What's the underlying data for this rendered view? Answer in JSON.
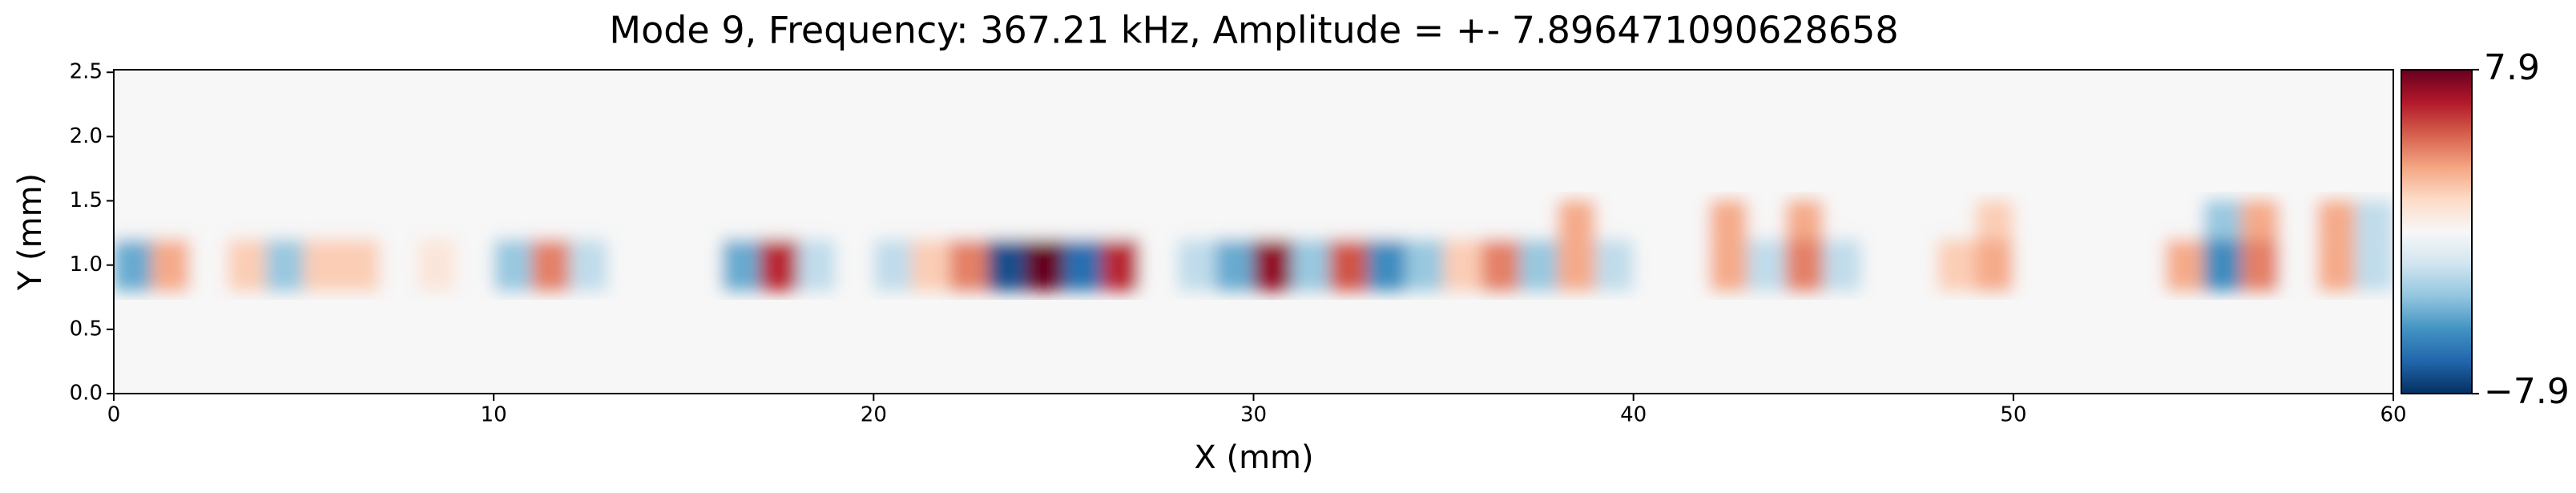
{
  "chart_data": {
    "type": "heatmap",
    "title": "Mode 9, Frequency: 367.21 kHz, Amplitude = +- 7.896471090628658",
    "xlabel": "X (mm)",
    "ylabel": "Y (mm)",
    "xlim": [
      0,
      60
    ],
    "ylim": [
      0,
      2.52
    ],
    "xticks": [
      0,
      10,
      20,
      30,
      40,
      50,
      60
    ],
    "yticks": [
      {
        "value": 0,
        "label": "0.0"
      },
      0.5,
      {
        "value": 1,
        "label": "1.0"
      },
      1.5,
      {
        "value": 2,
        "label": "2.0"
      },
      2.5
    ],
    "x_edges": [
      0,
      1,
      2,
      3,
      4,
      5,
      6,
      7,
      8,
      9,
      10,
      11,
      12,
      13,
      14,
      15,
      16,
      17,
      18,
      19,
      20,
      21,
      22,
      23,
      24,
      25,
      26,
      27,
      28,
      29,
      30,
      31,
      32,
      33,
      34,
      35,
      36,
      37,
      38,
      39,
      40,
      41,
      42,
      43,
      44,
      45,
      46,
      47,
      48,
      49,
      50,
      51,
      52,
      53,
      54,
      55,
      56,
      57,
      58,
      59,
      60
    ],
    "y_edges": [
      0.8,
      1.2,
      1.5
    ],
    "z": [
      [
        -4,
        3,
        0,
        2,
        -3,
        2,
        2,
        0,
        1,
        0,
        -3,
        4,
        -2,
        0,
        0,
        0,
        -4,
        6,
        -2,
        0,
        -2,
        2,
        4,
        -7,
        7.9,
        -6,
        6,
        0,
        -2,
        -4,
        7,
        -3,
        5,
        -5,
        -3,
        2,
        4,
        -3,
        3,
        -2,
        0,
        0,
        3,
        -2,
        4,
        -2,
        0,
        0,
        2,
        3,
        0,
        0,
        0,
        0,
        3,
        -5,
        4,
        0,
        3,
        -2
      ],
      [
        0,
        0,
        0,
        0,
        0,
        0,
        0,
        0,
        0,
        0,
        0,
        0,
        0,
        0,
        0,
        0,
        0,
        0,
        0,
        0,
        0,
        0,
        0,
        0,
        0,
        0,
        0,
        0,
        0,
        0,
        0,
        0,
        0,
        0,
        0,
        0,
        0,
        0,
        3,
        0,
        0,
        0,
        3,
        0,
        3,
        0,
        0,
        0,
        0,
        2,
        0,
        0,
        0,
        0,
        0,
        -3,
        3,
        0,
        3,
        -2
      ]
    ],
    "colorbar_lim": [
      -7.896471090628658,
      7.896471090628658
    ],
    "colorbar_ticks": [
      7.9,
      {
        "value": -7.9,
        "label": "−7.9"
      }
    ],
    "colormap": [
      "#053061",
      "#2166ac",
      "#4393c3",
      "#92c5de",
      "#d1e5f0",
      "#f7f7f7",
      "#fddbc7",
      "#f4a582",
      "#d6604d",
      "#b2182b",
      "#67001f"
    ]
  }
}
